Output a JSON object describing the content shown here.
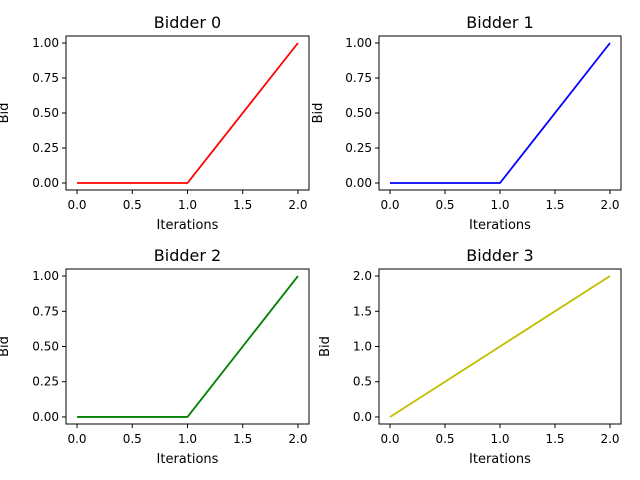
{
  "chart_data": [
    {
      "type": "line",
      "title": "Bidder 0",
      "xlabel": "Iterations",
      "ylabel": "Bid",
      "x": [
        0,
        1,
        2
      ],
      "series": [
        {
          "values": [
            0,
            0,
            1
          ],
          "color": "#ff0000"
        }
      ],
      "xlim": [
        -0.1,
        2.1
      ],
      "ylim": [
        -0.05,
        1.05
      ],
      "xticks": [
        0,
        0.5,
        1,
        1.5,
        2
      ],
      "xtick_labels": [
        "0.0",
        "0.5",
        "1.0",
        "1.5",
        "2.0"
      ],
      "yticks": [
        0,
        0.25,
        0.5,
        0.75,
        1
      ],
      "ytick_labels": [
        "0.00",
        "0.25",
        "0.50",
        "0.75",
        "1.00"
      ],
      "grid": false
    },
    {
      "type": "line",
      "title": "Bidder 1",
      "xlabel": "Iterations",
      "ylabel": "Bid",
      "x": [
        0,
        1,
        2
      ],
      "series": [
        {
          "values": [
            0,
            0,
            1
          ],
          "color": "#0000ff"
        }
      ],
      "xlim": [
        -0.1,
        2.1
      ],
      "ylim": [
        -0.05,
        1.05
      ],
      "xticks": [
        0,
        0.5,
        1,
        1.5,
        2
      ],
      "xtick_labels": [
        "0.0",
        "0.5",
        "1.0",
        "1.5",
        "2.0"
      ],
      "yticks": [
        0,
        0.25,
        0.5,
        0.75,
        1
      ],
      "ytick_labels": [
        "0.00",
        "0.25",
        "0.50",
        "0.75",
        "1.00"
      ],
      "grid": false
    },
    {
      "type": "line",
      "title": "Bidder 2",
      "xlabel": "Iterations",
      "ylabel": "Bid",
      "x": [
        0,
        1,
        2
      ],
      "series": [
        {
          "values": [
            0,
            0,
            1
          ],
          "color": "#008000"
        }
      ],
      "xlim": [
        -0.1,
        2.1
      ],
      "ylim": [
        -0.05,
        1.05
      ],
      "xticks": [
        0,
        0.5,
        1,
        1.5,
        2
      ],
      "xtick_labels": [
        "0.0",
        "0.5",
        "1.0",
        "1.5",
        "2.0"
      ],
      "yticks": [
        0,
        0.25,
        0.5,
        0.75,
        1
      ],
      "ytick_labels": [
        "0.00",
        "0.25",
        "0.50",
        "0.75",
        "1.00"
      ],
      "grid": false
    },
    {
      "type": "line",
      "title": "Bidder 3",
      "xlabel": "Iterations",
      "ylabel": "Bid",
      "x": [
        0,
        1,
        2
      ],
      "series": [
        {
          "values": [
            0,
            1,
            2
          ],
          "color": "#bfbf00"
        }
      ],
      "xlim": [
        -0.1,
        2.1
      ],
      "ylim": [
        -0.1,
        2.1
      ],
      "xticks": [
        0,
        0.5,
        1,
        1.5,
        2
      ],
      "xtick_labels": [
        "0.0",
        "0.5",
        "1.0",
        "1.5",
        "2.0"
      ],
      "yticks": [
        0,
        0.5,
        1,
        1.5,
        2
      ],
      "ytick_labels": [
        "0.0",
        "0.5",
        "1.0",
        "1.5",
        "2.0"
      ],
      "grid": false
    }
  ]
}
